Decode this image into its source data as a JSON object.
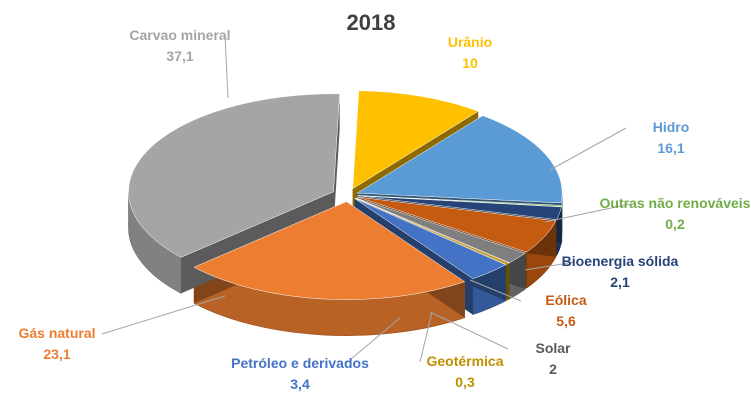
{
  "chart_data": {
    "type": "pie",
    "title": "2018",
    "categories": [
      "Urânio",
      "Hidro",
      "Outras não renováveis",
      "Bioenergia sólida",
      "Eólica",
      "Solar",
      "Geotérmica",
      "Petróleo e derivados",
      "Gás natural",
      "Carvao mineral"
    ],
    "values": [
      10,
      16.1,
      0.2,
      2.1,
      5.6,
      2,
      0.3,
      3.4,
      23.1,
      37.1
    ],
    "value_labels": [
      "10",
      "16,1",
      "0,2",
      "2,1",
      "5,6",
      "2",
      "0,3",
      "3,4",
      "23,1",
      "37,1"
    ],
    "colors": [
      "#FFC000",
      "#5B9BD5",
      "#70AD47",
      "#264478",
      "#C55A11",
      "#7F7F7F",
      "#BF9000",
      "#4472C4",
      "#ED7D31",
      "#A5A5A5"
    ],
    "exploded": true,
    "style": "3d"
  }
}
